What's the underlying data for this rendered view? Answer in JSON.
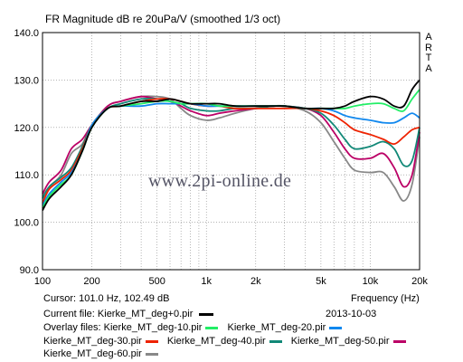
{
  "chart_data": {
    "type": "line",
    "title": "FR Magnitude dB re 20uPa/V (smoothed 1/3 oct)",
    "xlabel": "Frequency (Hz)",
    "ylabel": "",
    "x_scale": "log",
    "xlim": [
      100,
      20000
    ],
    "ylim": [
      90,
      140
    ],
    "grid": true,
    "x_ticks": [
      {
        "value": 100,
        "label": "100"
      },
      {
        "value": 200,
        "label": "200"
      },
      {
        "value": 500,
        "label": "500"
      },
      {
        "value": 1000,
        "label": "1k"
      },
      {
        "value": 2000,
        "label": "2k"
      },
      {
        "value": 5000,
        "label": "5k"
      },
      {
        "value": 10000,
        "label": "10k"
      },
      {
        "value": 20000,
        "label": "20k"
      }
    ],
    "y_ticks": [
      {
        "value": 140,
        "label": "140.0"
      },
      {
        "value": 130,
        "label": "130.0"
      },
      {
        "value": 120,
        "label": "120.0"
      },
      {
        "value": 110,
        "label": "110.0"
      },
      {
        "value": 100,
        "label": "100.0"
      },
      {
        "value": 90,
        "label": "90.0"
      }
    ],
    "x": [
      100,
      110,
      130,
      150,
      175,
      200,
      250,
      300,
      400,
      500,
      600,
      700,
      800,
      1000,
      1200,
      1500,
      2000,
      2500,
      3000,
      4000,
      5000,
      6000,
      7000,
      8000,
      10000,
      12000,
      14000,
      16000,
      18000,
      20000
    ],
    "series": [
      {
        "name": "Kierke_MT_deg+0.pir",
        "color": "#000000",
        "values": [
          102.5,
          105,
          107.5,
          110,
          115,
          120,
          124,
          124.5,
          125.5,
          125.5,
          126,
          125.5,
          125,
          125,
          125,
          124.5,
          124.5,
          124.5,
          124.5,
          124,
          124,
          124,
          124.5,
          125.5,
          126.5,
          126,
          124.5,
          124.5,
          128,
          130
        ]
      },
      {
        "name": "Kierke_MT_deg-10.pir",
        "color": "#22ee66",
        "values": [
          103,
          105.5,
          108,
          110,
          115,
          120,
          124,
          124.5,
          125,
          125.5,
          125.5,
          125,
          125,
          125,
          124.5,
          124.5,
          124.5,
          124.5,
          124.5,
          124,
          124,
          124,
          124,
          124.5,
          125,
          125,
          124,
          123.5,
          126,
          128
        ]
      },
      {
        "name": "Kierke_MT_deg-20.pir",
        "color": "#1188ee",
        "values": [
          103.5,
          106,
          108.5,
          110.5,
          115,
          120.5,
          124,
          124.5,
          124.5,
          125,
          125,
          125,
          125,
          124.5,
          124.5,
          124.5,
          124.5,
          124.5,
          124.5,
          124,
          124,
          123.5,
          122.5,
          122,
          121.5,
          121,
          121,
          122,
          123,
          122
        ]
      },
      {
        "name": "Kierke_MT_deg-30.pir",
        "color": "#ee2200",
        "values": [
          104,
          107,
          109,
          111,
          115.5,
          120.5,
          124,
          124.5,
          125.5,
          126,
          126,
          125.5,
          125,
          124.5,
          124.5,
          124,
          124,
          124,
          124,
          124,
          123.5,
          122.5,
          121,
          119.5,
          118.5,
          117.5,
          116.5,
          118,
          119.5,
          120
        ]
      },
      {
        "name": "Kierke_MT_deg-40.pir",
        "color": "#118877",
        "values": [
          105,
          107.5,
          109.5,
          111.5,
          116,
          120.5,
          124,
          125,
          126,
          126,
          125.5,
          125,
          124,
          123.5,
          123.5,
          124,
          124,
          124.5,
          124.5,
          124,
          123,
          120.5,
          117.5,
          115.5,
          116,
          117,
          115.5,
          112,
          113,
          120
        ]
      },
      {
        "name": "Kierke_MT_deg-50.pir",
        "color": "#bb0066",
        "values": [
          106,
          108.5,
          111,
          115.5,
          117.5,
          120.5,
          124.5,
          125.5,
          126.5,
          126,
          125.5,
          124.5,
          123.5,
          122.5,
          123,
          123.5,
          124,
          124.5,
          124.5,
          124,
          122.5,
          119,
          115.5,
          113.5,
          113.5,
          114.5,
          111.5,
          107.5,
          110,
          119
        ]
      },
      {
        "name": "Kierke_MT_deg-60.pir",
        "color": "#888888",
        "values": [
          105.5,
          107.5,
          110,
          114.5,
          116.5,
          120.5,
          124.5,
          125.5,
          126.5,
          126.5,
          126,
          124,
          122.5,
          121.5,
          122,
          123,
          124,
          124.5,
          124.5,
          123.5,
          121,
          117,
          113.5,
          111,
          110.5,
          110.5,
          107.5,
          104.5,
          108,
          118
        ]
      }
    ]
  },
  "watermark": "www.2pi-online.de",
  "arta_logo": [
    "A",
    "R",
    "T",
    "A"
  ],
  "cursor": "Cursor: 101.0 Hz, 102.49 dB",
  "frequency_label": "Frequency (Hz)",
  "current_file_label": "Current file: Kierke_MT_deg+0.pir",
  "date": "2013-10-03",
  "overlay_label": "Overlay files:",
  "overlay_files": [
    "Kierke_MT_deg-10.pir",
    "Kierke_MT_deg-20.pir",
    "Kierke_MT_deg-30.pir",
    "Kierke_MT_deg-40.pir",
    "Kierke_MT_deg-50.pir",
    "Kierke_MT_deg-60.pir"
  ],
  "colors": {
    "plot_background": "#ffffff",
    "grid": "#888888"
  }
}
